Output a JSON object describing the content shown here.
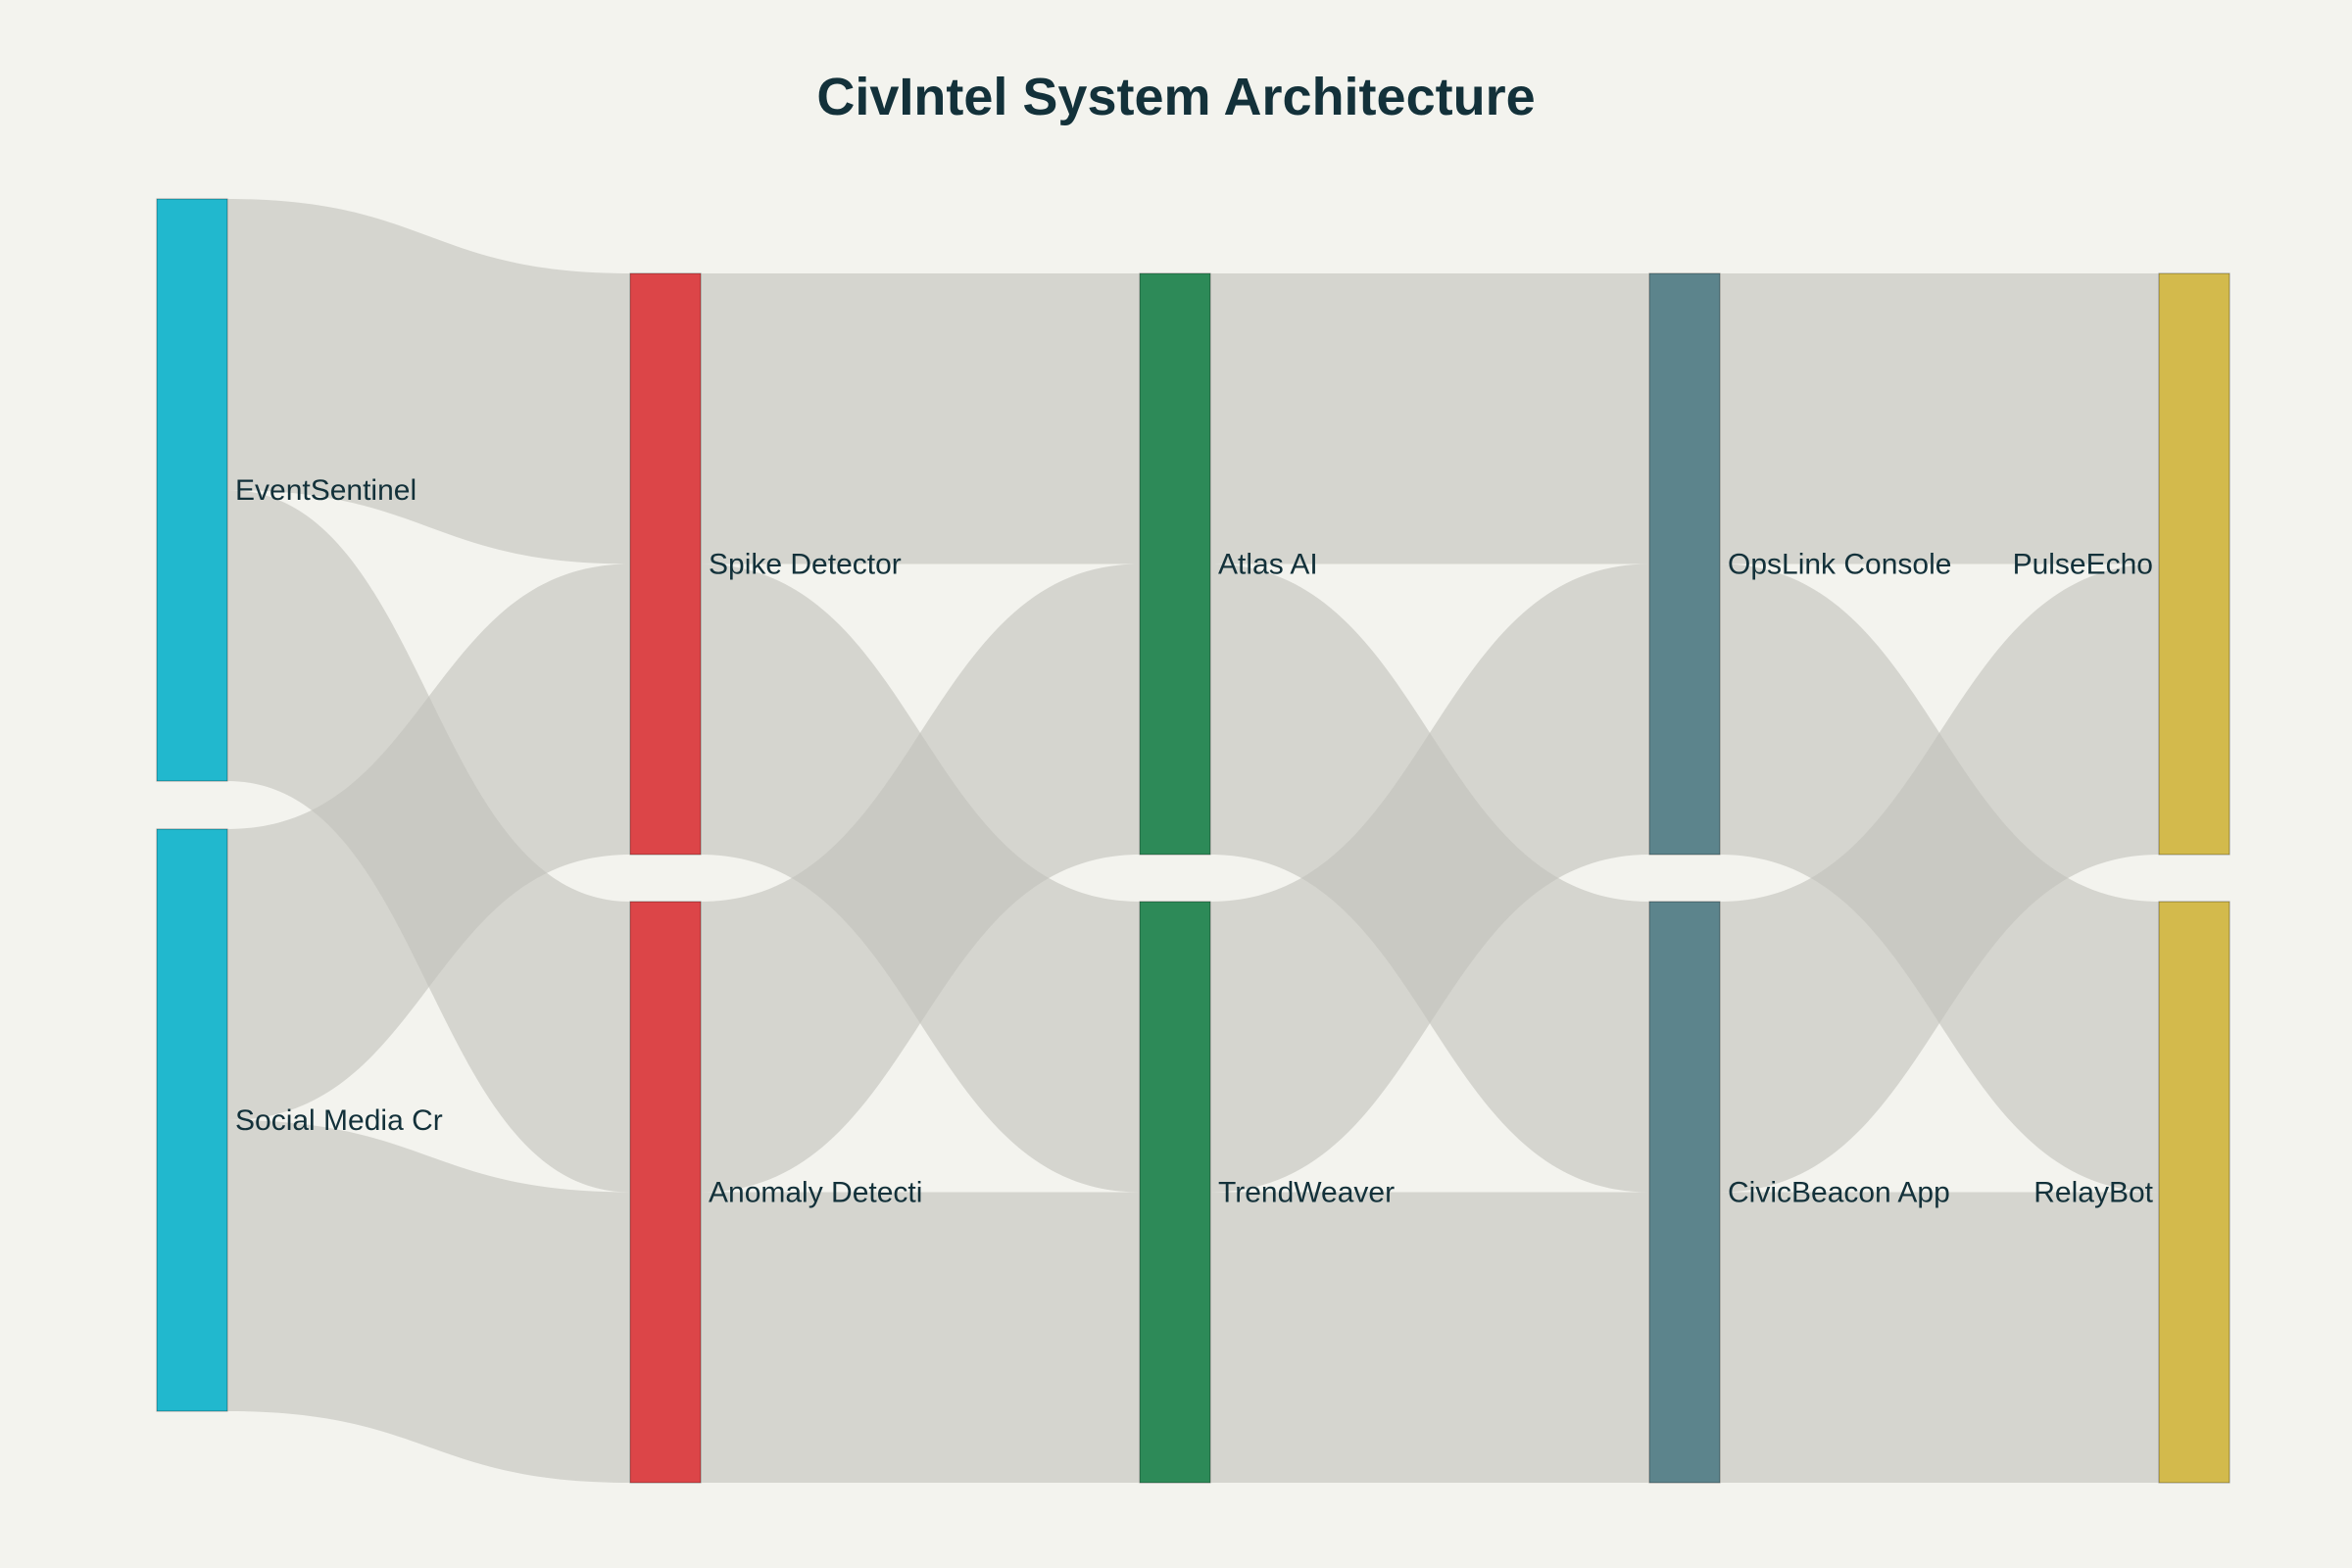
{
  "title": "CivIntel System Architecture",
  "chart_data": {
    "type": "sankey",
    "title": "CivIntel System Architecture",
    "node_colors": {
      "sources": "#21B8CE",
      "detectors": "#DC4548",
      "models": "#2D8A58",
      "consoles": "#5C848C",
      "outputs": "#D3BA4C",
      "link": "#C2C2BC"
    },
    "stages": [
      {
        "name": "sources",
        "nodes": [
          {
            "id": "event_sentinel",
            "label": "EventSentinel"
          },
          {
            "id": "social_media",
            "label": "Social Media Cr"
          }
        ]
      },
      {
        "name": "detectors",
        "nodes": [
          {
            "id": "spike_detector",
            "label": "Spike Detector"
          },
          {
            "id": "anomaly_detection",
            "label": "Anomaly Detecti"
          }
        ]
      },
      {
        "name": "models",
        "nodes": [
          {
            "id": "atlas_ai",
            "label": "Atlas AI"
          },
          {
            "id": "trendweaver",
            "label": "TrendWeaver"
          }
        ]
      },
      {
        "name": "consoles",
        "nodes": [
          {
            "id": "opslink_console",
            "label": "OpsLink Console"
          },
          {
            "id": "civicbeacon_app",
            "label": "CivicBeacon App"
          }
        ]
      },
      {
        "name": "outputs",
        "nodes": [
          {
            "id": "pulseecho",
            "label": "PulseEcho"
          },
          {
            "id": "relaybot",
            "label": "RelayBot"
          }
        ]
      }
    ],
    "links": [
      {
        "source": "event_sentinel",
        "target": "spike_detector",
        "value": 1
      },
      {
        "source": "event_sentinel",
        "target": "anomaly_detection",
        "value": 1
      },
      {
        "source": "social_media",
        "target": "spike_detector",
        "value": 1
      },
      {
        "source": "social_media",
        "target": "anomaly_detection",
        "value": 1
      },
      {
        "source": "spike_detector",
        "target": "atlas_ai",
        "value": 1
      },
      {
        "source": "spike_detector",
        "target": "trendweaver",
        "value": 1
      },
      {
        "source": "anomaly_detection",
        "target": "atlas_ai",
        "value": 1
      },
      {
        "source": "anomaly_detection",
        "target": "trendweaver",
        "value": 1
      },
      {
        "source": "atlas_ai",
        "target": "opslink_console",
        "value": 1
      },
      {
        "source": "atlas_ai",
        "target": "civicbeacon_app",
        "value": 1
      },
      {
        "source": "trendweaver",
        "target": "opslink_console",
        "value": 1
      },
      {
        "source": "trendweaver",
        "target": "civicbeacon_app",
        "value": 1
      },
      {
        "source": "opslink_console",
        "target": "pulseecho",
        "value": 1
      },
      {
        "source": "opslink_console",
        "target": "relaybot",
        "value": 1
      },
      {
        "source": "civicbeacon_app",
        "target": "pulseecho",
        "value": 1
      },
      {
        "source": "civicbeacon_app",
        "target": "relaybot",
        "value": 1
      }
    ]
  }
}
